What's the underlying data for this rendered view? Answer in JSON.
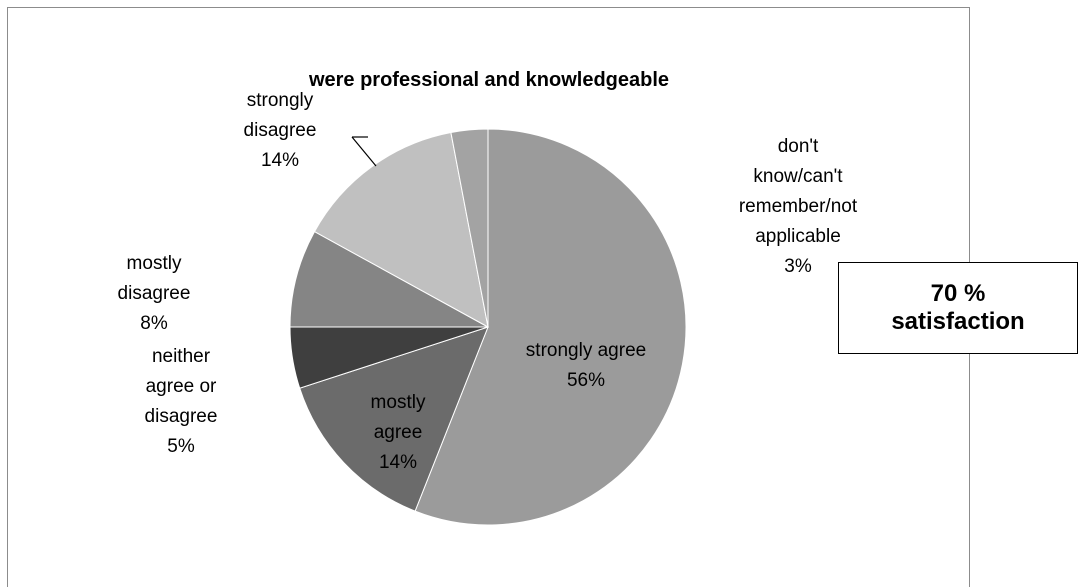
{
  "chart_data": {
    "type": "pie",
    "title": "were professional and knowledgeable",
    "slices": [
      {
        "label": "strongly agree",
        "percent_label": "56%",
        "value": 56,
        "color": "#9b9b9b"
      },
      {
        "label": "mostly agree",
        "percent_label": "14%",
        "value": 14,
        "color": "#6b6b6b"
      },
      {
        "label": "neither agree or disagree",
        "percent_label": "5%",
        "value": 5,
        "color": "#3f3f3f"
      },
      {
        "label": "mostly disagree",
        "percent_label": "8%",
        "value": 8,
        "color": "#858585"
      },
      {
        "label": "strongly disagree",
        "percent_label": "14%",
        "value": 14,
        "color": "#c0c0c0"
      },
      {
        "label": "don't know/can't remember/not applicable",
        "percent_label": "3%",
        "value": 3,
        "color": "#a3a3a3"
      }
    ],
    "label_lines": {
      "strongly_agree": [
        "strongly agree",
        "56%"
      ],
      "mostly_agree": [
        "mostly",
        "agree",
        "14%"
      ],
      "neither": [
        "neither",
        "agree or",
        "disagree",
        "5%"
      ],
      "mostly_disagree": [
        "mostly",
        "disagree",
        "8%"
      ],
      "strongly_disagree": [
        "strongly",
        "disagree",
        "14%"
      ],
      "dont_know": [
        "don't",
        "know/can't",
        "remember/not",
        "applicable",
        "3%"
      ]
    }
  },
  "callout": {
    "line1": "70 %",
    "line2": "satisfaction"
  }
}
